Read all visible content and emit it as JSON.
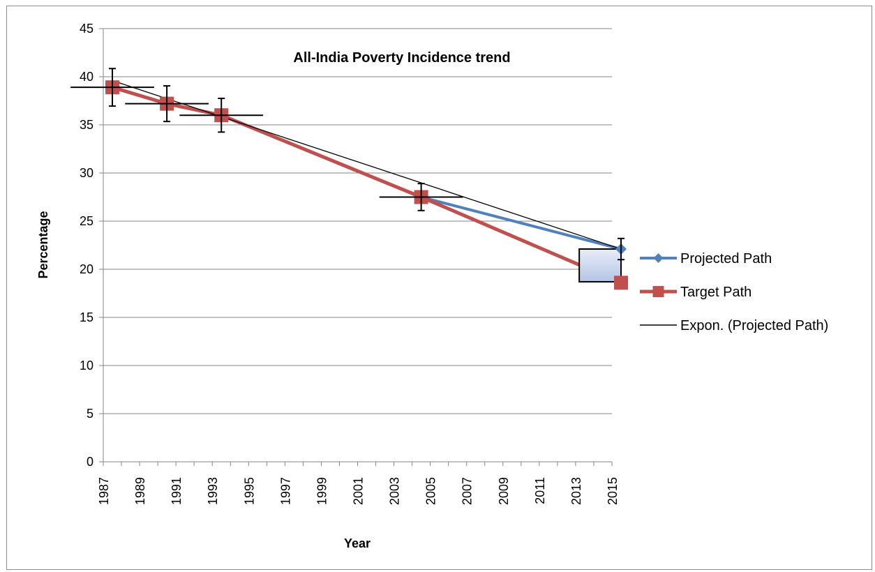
{
  "chart_data": {
    "type": "line",
    "title": "All-India Poverty Incidence trend",
    "xlabel": "Year",
    "ylabel": "Percentage",
    "xlim": [
      1987,
      2015
    ],
    "ylim": [
      0,
      45
    ],
    "x_ticks": [
      "1987",
      "1989",
      "1991",
      "1993",
      "1995",
      "1997",
      "1999",
      "2001",
      "2003",
      "2005",
      "2007",
      "2009",
      "2011",
      "2013",
      "2015"
    ],
    "y_ticks": [
      "0",
      "5",
      "10",
      "15",
      "20",
      "25",
      "30",
      "35",
      "40",
      "45"
    ],
    "grid": "horizontal",
    "legend_position": "right",
    "series": [
      {
        "name": "Projected Path",
        "color": "#4f81bd",
        "marker": "diamond",
        "x": [
          1987.5,
          1990.5,
          1993.5,
          2004.5,
          2015.5
        ],
        "y": [
          38.9,
          37.2,
          36.0,
          27.5,
          22.1
        ]
      },
      {
        "name": "Target Path",
        "color": "#c0504d",
        "marker": "square",
        "x": [
          1987.5,
          1990.5,
          1993.5,
          2004.5,
          2015.5
        ],
        "y": [
          38.9,
          37.2,
          36.0,
          27.5,
          18.6
        ]
      },
      {
        "name": "Expon. (Projected Path)",
        "color": "#000000",
        "marker": "none",
        "trendline": true,
        "x": [
          1987.5,
          2015.5
        ],
        "y": [
          39.6,
          22.1
        ]
      }
    ],
    "error_bars": {
      "color": "#000000",
      "y_plus_minus": [
        1.95,
        1.85,
        1.75,
        1.4,
        1.1
      ],
      "x_plus_minus": [
        2.3,
        2.3,
        2.3,
        2.3,
        0
      ]
    },
    "highlight_box": {
      "x_range": [
        2013.2,
        2015.5
      ],
      "y_range": [
        18.7,
        22.1
      ],
      "fill_top": "#e8edf7",
      "fill_bottom": "#b4c4e6"
    }
  }
}
